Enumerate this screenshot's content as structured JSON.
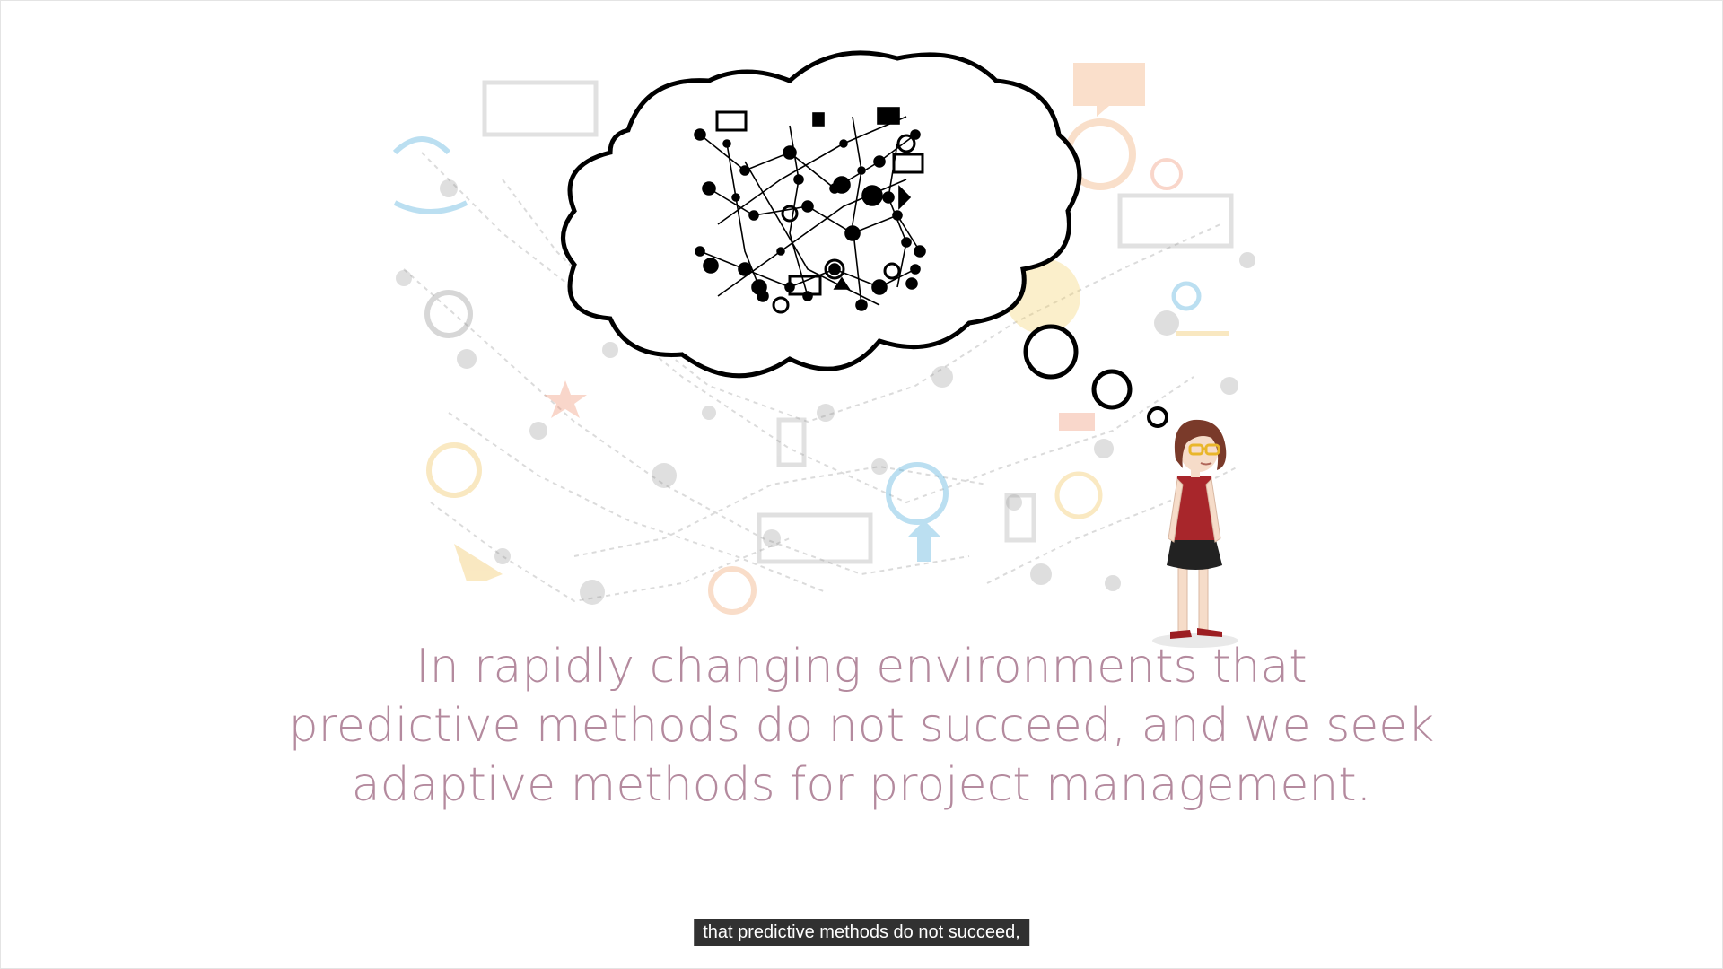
{
  "slide": {
    "lines": [
      "In rapidly changing environments that",
      "predictive methods do not succeed, and we seek",
      "adaptive methods for project management."
    ],
    "text_color": "#b48a9e"
  },
  "caption": {
    "text": "that predictive methods do not succeed,"
  },
  "illustration": {
    "figure": "woman-thinking",
    "thought_bubble_content": "network-of-icons",
    "background": "faded-network-icons"
  },
  "colors": {
    "background": "#ffffff",
    "caption_bg": "#141414",
    "caption_text": "#ffffff",
    "shirt": "#a8262b",
    "skirt": "#222222",
    "hair": "#7a3a2a"
  }
}
